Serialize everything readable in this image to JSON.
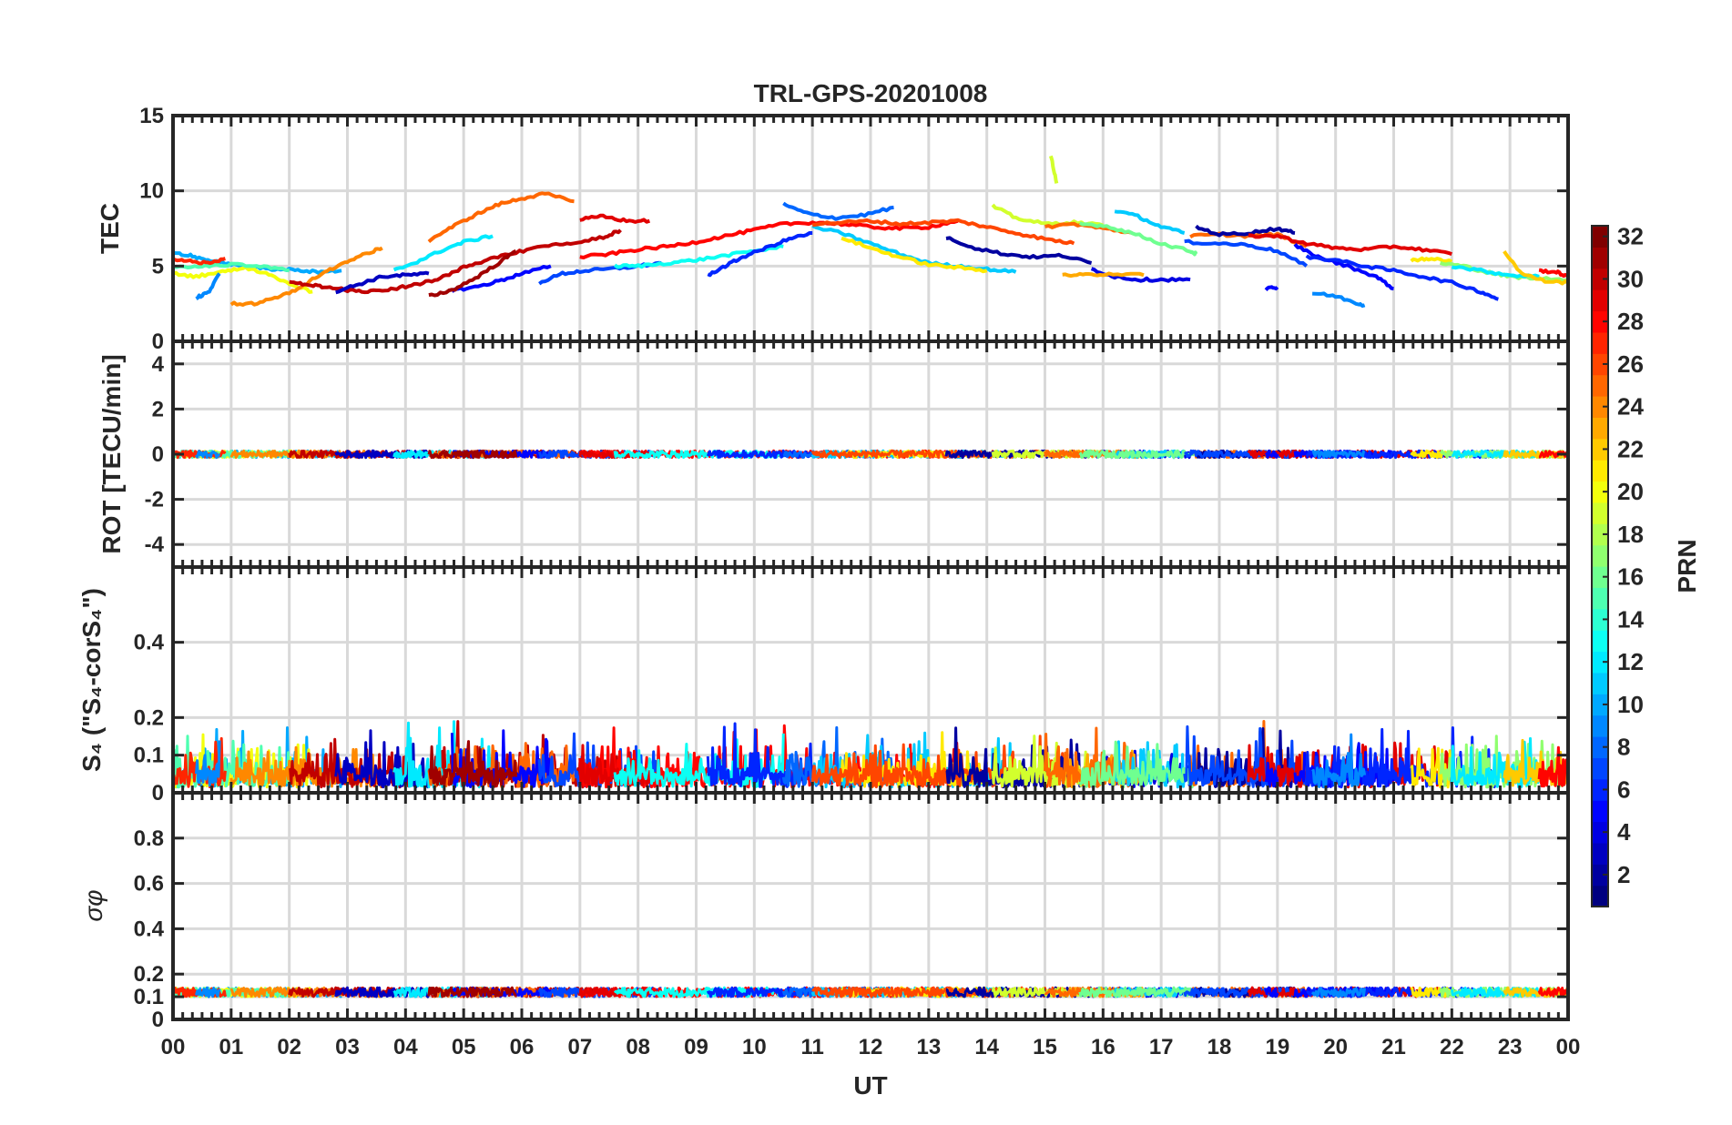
{
  "chart_data": {
    "type": "line",
    "title": "TRL-GPS-20201008",
    "xlabel": "UT",
    "x_ticks": [
      "00",
      "01",
      "02",
      "03",
      "04",
      "05",
      "06",
      "07",
      "08",
      "09",
      "10",
      "11",
      "12",
      "13",
      "14",
      "15",
      "16",
      "17",
      "18",
      "19",
      "20",
      "21",
      "22",
      "23",
      "00"
    ],
    "xlim": [
      0,
      24
    ],
    "grid": true,
    "colorbar": {
      "label": "PRN",
      "range": [
        1,
        32
      ],
      "ticks": [
        "2",
        "4",
        "6",
        "8",
        "10",
        "12",
        "14",
        "16",
        "18",
        "20",
        "22",
        "24",
        "26",
        "28",
        "30",
        "32"
      ],
      "colormap": "jet"
    },
    "panels": [
      {
        "name": "tec",
        "ylabel": "TEC",
        "ylim": [
          0,
          15
        ],
        "yticks": [
          "0",
          "5",
          "10",
          "15"
        ],
        "series": [
          {
            "prn": 10,
            "x": [
              0.0,
              0.3,
              0.6,
              1.0,
              1.4,
              1.8,
              2.2,
              2.6,
              2.9
            ],
            "y": [
              5.9,
              5.7,
              5.4,
              5.1,
              4.9,
              4.8,
              4.7,
              4.6,
              4.7
            ]
          },
          {
            "prn": 20,
            "x": [
              0.0,
              0.4,
              0.8,
              1.2,
              1.6,
              2.0,
              2.4
            ],
            "y": [
              4.5,
              4.3,
              4.6,
              4.9,
              4.5,
              3.8,
              3.3
            ]
          },
          {
            "prn": 15,
            "x": [
              0.0,
              0.5,
              1.0,
              1.5,
              2.0
            ],
            "y": [
              4.9,
              5.0,
              5.1,
              5.0,
              4.7
            ]
          },
          {
            "prn": 27,
            "x": [
              0.0,
              0.3,
              0.6,
              0.9
            ],
            "y": [
              5.4,
              5.3,
              5.2,
              5.5
            ]
          },
          {
            "prn": 9,
            "x": [
              0.4,
              0.6,
              0.8
            ],
            "y": [
              2.9,
              3.2,
              4.5
            ]
          },
          {
            "prn": 24,
            "x": [
              1.0,
              1.4,
              1.8,
              2.2,
              2.6,
              3.0,
              3.3,
              3.6
            ],
            "y": [
              2.5,
              2.5,
              2.9,
              3.6,
              4.6,
              5.3,
              5.8,
              6.2
            ]
          },
          {
            "prn": 30,
            "x": [
              2.0,
              2.3,
              2.6,
              3.0,
              3.4,
              3.8,
              4.2,
              4.6,
              5.0,
              5.4,
              5.9,
              6.4,
              6.9,
              7.4,
              7.7
            ],
            "y": [
              3.9,
              3.8,
              3.6,
              3.4,
              3.3,
              3.5,
              3.8,
              4.2,
              4.9,
              5.4,
              5.9,
              6.3,
              6.6,
              6.9,
              7.4
            ]
          },
          {
            "prn": 3,
            "x": [
              2.8,
              3.2,
              3.6,
              4.0,
              4.4
            ],
            "y": [
              3.3,
              3.8,
              4.3,
              4.4,
              4.5
            ]
          },
          {
            "prn": 12,
            "x": [
              3.8,
              4.2,
              4.6,
              5.0,
              5.5
            ],
            "y": [
              4.7,
              5.3,
              6.0,
              6.6,
              7.0
            ]
          },
          {
            "prn": 25,
            "x": [
              4.4,
              4.8,
              5.2,
              5.6,
              6.0,
              6.4,
              6.9
            ],
            "y": [
              6.7,
              7.6,
              8.4,
              9.1,
              9.5,
              9.8,
              9.3
            ]
          },
          {
            "prn": 5,
            "x": [
              4.8,
              5.2,
              5.6,
              6.0,
              6.5
            ],
            "y": [
              3.4,
              3.6,
              4.0,
              4.5,
              5.0
            ]
          },
          {
            "prn": 31,
            "x": [
              4.4,
              4.8,
              5.2,
              5.6,
              5.9
            ],
            "y": [
              3.0,
              3.4,
              4.2,
              5.2,
              6.0
            ]
          },
          {
            "prn": 7,
            "x": [
              6.3,
              6.7,
              7.1,
              7.5,
              8.0,
              8.4
            ],
            "y": [
              3.9,
              4.5,
              4.7,
              4.8,
              5.0,
              5.2
            ]
          },
          {
            "prn": 28,
            "x": [
              7.0,
              7.5,
              8.0,
              8.5,
              9.0,
              9.5,
              10.0,
              10.5,
              11.0,
              11.5,
              12.0,
              12.5,
              13.0,
              13.5
            ],
            "y": [
              5.6,
              5.8,
              6.1,
              6.3,
              6.6,
              7.0,
              7.4,
              7.8,
              7.9,
              7.8,
              7.6,
              7.5,
              7.6,
              8.0
            ]
          },
          {
            "prn": 29,
            "x": [
              7.0,
              7.4,
              7.8,
              8.2
            ],
            "y": [
              8.1,
              8.3,
              8.0,
              8.0
            ]
          },
          {
            "prn": 13,
            "x": [
              7.6,
              8.0,
              8.5,
              9.0,
              9.5,
              10.0,
              10.5
            ],
            "y": [
              5.0,
              5.0,
              5.2,
              5.4,
              5.7,
              6.0,
              6.3
            ]
          },
          {
            "prn": 6,
            "x": [
              9.2,
              9.5,
              9.8,
              10.2,
              10.6,
              11.0
            ],
            "y": [
              4.4,
              5.0,
              5.6,
              6.2,
              6.8,
              7.2
            ]
          },
          {
            "prn": 8,
            "x": [
              10.5,
              10.9,
              11.4,
              11.9,
              12.4
            ],
            "y": [
              9.1,
              8.5,
              8.2,
              8.4,
              8.9
            ]
          },
          {
            "prn": 11,
            "x": [
              11.0,
              11.5,
              12.0,
              12.5,
              13.0,
              13.5,
              14.0,
              14.5
            ],
            "y": [
              7.6,
              7.2,
              6.5,
              5.8,
              5.2,
              5.0,
              4.8,
              4.6
            ]
          },
          {
            "prn": 21,
            "x": [
              11.5,
              12.0,
              12.5,
              13.0,
              13.5,
              14.0
            ],
            "y": [
              6.9,
              6.2,
              5.6,
              5.1,
              4.9,
              4.7
            ]
          },
          {
            "prn": 26,
            "x": [
              11.0,
              11.5,
              12.0,
              12.5,
              13.0,
              13.5,
              14.0,
              14.5,
              15.0,
              15.5
            ],
            "y": [
              7.8,
              7.9,
              8.0,
              7.8,
              7.9,
              8.0,
              7.6,
              7.2,
              6.8,
              6.5
            ]
          },
          {
            "prn": 2,
            "x": [
              13.3,
              13.8,
              14.3,
              14.8,
              15.3,
              15.8
            ],
            "y": [
              6.9,
              6.2,
              5.8,
              5.6,
              5.7,
              5.2
            ]
          },
          {
            "prn": 4,
            "x": [
              15.8,
              16.2,
              16.6,
              17.0,
              17.5
            ],
            "y": [
              4.8,
              4.3,
              4.1,
              4.1,
              4.1
            ]
          },
          {
            "prn": 19,
            "x": [
              14.1,
              14.5,
              15.0,
              15.5,
              16.0
            ],
            "y": [
              9.0,
              8.2,
              7.8,
              7.9,
              7.7
            ]
          },
          {
            "prn": 19,
            "x": [
              15.1,
              15.2
            ],
            "y": [
              12.4,
              10.5
            ]
          },
          {
            "prn": 23,
            "x": [
              15.3,
              15.7,
              16.1,
              16.7
            ],
            "y": [
              4.4,
              4.4,
              4.5,
              4.4
            ]
          },
          {
            "prn": 25,
            "x": [
              15.0,
              15.5,
              16.0,
              16.5
            ],
            "y": [
              7.6,
              7.8,
              7.5,
              7.2
            ]
          },
          {
            "prn": 11,
            "x": [
              16.2,
              16.6,
              17.0,
              17.4
            ],
            "y": [
              8.7,
              8.3,
              7.6,
              7.2
            ]
          },
          {
            "prn": 16,
            "x": [
              15.6,
              16.0,
              16.5,
              17.0,
              17.5,
              17.6
            ],
            "y": [
              7.8,
              7.7,
              7.2,
              6.5,
              6.0,
              5.8
            ]
          },
          {
            "prn": 25,
            "x": [
              17.5,
              18.0,
              18.5,
              19.0,
              19.5
            ],
            "y": [
              7.0,
              7.1,
              7.0,
              7.1,
              6.3
            ]
          },
          {
            "prn": 2,
            "x": [
              17.6,
              18.0,
              18.5,
              19.0,
              19.3
            ],
            "y": [
              7.6,
              7.1,
              7.2,
              7.5,
              7.2
            ]
          },
          {
            "prn": 7,
            "x": [
              17.4,
              18.0,
              18.5,
              19.0,
              19.5
            ],
            "y": [
              6.6,
              6.5,
              6.4,
              6.0,
              5.0
            ]
          },
          {
            "prn": 29,
            "x": [
              18.5,
              19.0,
              19.5,
              20.0,
              20.5,
              21.0,
              21.5,
              22.0
            ],
            "y": [
              7.0,
              7.0,
              6.5,
              6.2,
              6.1,
              6.3,
              6.1,
              5.8
            ]
          },
          {
            "prn": 5,
            "x": [
              19.3,
              19.7,
              20.2,
              20.7,
              21.0
            ],
            "y": [
              6.4,
              5.6,
              5.0,
              4.3,
              3.5
            ]
          },
          {
            "prn": 6,
            "x": [
              19.5,
              20.0,
              20.5,
              21.0,
              21.5,
              22.0,
              22.5,
              22.8
            ],
            "y": [
              5.6,
              5.4,
              5.0,
              4.7,
              4.3,
              3.9,
              3.3,
              2.8
            ]
          },
          {
            "prn": 9,
            "x": [
              19.6,
              20.0,
              20.4,
              20.5
            ],
            "y": [
              3.2,
              3.0,
              2.5,
              2.4
            ]
          },
          {
            "prn": 5,
            "x": [
              18.8,
              19.0
            ],
            "y": [
              3.5,
              3.6
            ]
          },
          {
            "prn": 21,
            "x": [
              21.3,
              21.6,
              22.0
            ],
            "y": [
              5.4,
              5.5,
              5.3
            ]
          },
          {
            "prn": 17,
            "x": [
              21.8,
              22.2,
              22.6,
              23.0,
              23.4,
              24.0
            ],
            "y": [
              5.2,
              5.0,
              4.6,
              4.3,
              4.2,
              4.1
            ]
          },
          {
            "prn": 12,
            "x": [
              22.0,
              22.5,
              23.0,
              23.5
            ],
            "y": [
              5.0,
              4.7,
              4.4,
              4.3
            ]
          },
          {
            "prn": 22,
            "x": [
              22.9,
              23.2,
              23.6,
              24.0
            ],
            "y": [
              6.0,
              4.5,
              4.0,
              3.9
            ]
          },
          {
            "prn": 28,
            "x": [
              23.5,
              23.8,
              24.0
            ],
            "y": [
              4.7,
              4.6,
              4.3
            ]
          }
        ]
      },
      {
        "name": "rot",
        "ylabel": "ROT [TECU/min]",
        "ylim": [
          -5,
          5
        ],
        "yticks": [
          "-4",
          "-2",
          "0",
          "2",
          "4"
        ],
        "band": {
          "center": 0,
          "amplitude": 0.15
        }
      },
      {
        "name": "s4",
        "ylabel": "S₄ (\"S₄-corS₄\")",
        "ylim": [
          0,
          0.6
        ],
        "yticks": [
          "0",
          "0.1",
          "0.2",
          "0.4"
        ],
        "band": {
          "baseline": 0.04,
          "typical_peak": 0.12,
          "max_peak": 0.19
        }
      },
      {
        "name": "sigma_phi",
        "ylabel": "σφ",
        "ylim": [
          0,
          1
        ],
        "yticks": [
          "0",
          "0.1",
          "0.2",
          "0.4",
          "0.6",
          "0.8"
        ],
        "band": {
          "center": 0.12,
          "amplitude": 0.02
        }
      }
    ]
  }
}
